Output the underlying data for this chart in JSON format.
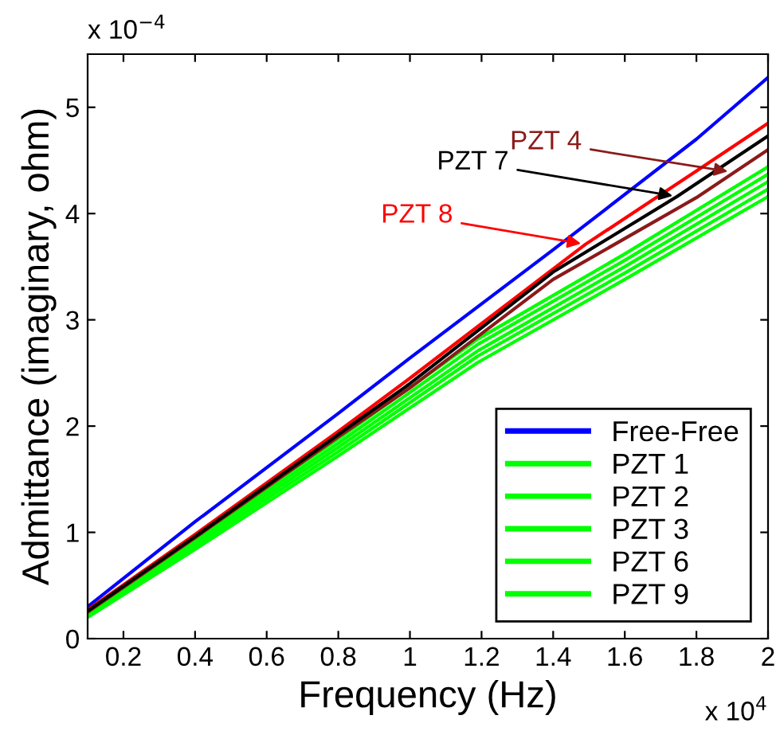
{
  "chart_data": {
    "type": "line",
    "xlabel": "Frequency (Hz)",
    "ylabel": "Admittance (imaginary, ohm)",
    "xlim": [
      0.1,
      2
    ],
    "xticks": [
      0.2,
      0.4,
      0.6,
      0.8,
      1,
      1.2,
      1.4,
      1.6,
      1.8,
      2
    ],
    "ylim": [
      0,
      5.5
    ],
    "yticks": [
      0,
      1,
      2,
      3,
      4,
      5
    ],
    "legend": "bottom right",
    "grid": false,
    "line_style": "solid",
    "series": [
      {
        "name": "Free-Free",
        "color": "#0000ff",
        "x": [
          0.1,
          0.4,
          0.8,
          1.0,
          1.4,
          1.8,
          2.0
        ],
        "values": [
          0.3,
          1.1,
          2.12,
          2.64,
          3.66,
          4.7,
          5.28
        ]
      },
      {
        "name": "PZT 1",
        "color": "#00ff00",
        "x": [
          0.1,
          0.4,
          0.8,
          1.19,
          1.6,
          2.0
        ],
        "values": [
          0.22,
          0.9,
          1.8,
          2.71,
          3.5,
          4.3
        ]
      },
      {
        "name": "PZT 2",
        "color": "#00ff00",
        "x": [
          0.1,
          0.4,
          0.8,
          1.19,
          1.6,
          2.0
        ],
        "values": [
          0.2,
          0.84,
          1.72,
          2.6,
          3.38,
          4.16
        ]
      },
      {
        "name": "PZT 3",
        "color": "#00ff00",
        "x": [
          0.1,
          0.4,
          0.8,
          1.19,
          1.6,
          2.0
        ],
        "values": [
          0.24,
          0.96,
          1.88,
          2.82,
          3.62,
          4.44
        ]
      },
      {
        "name": "PZT 6",
        "color": "#00ff00",
        "x": [
          0.1,
          0.4,
          0.8,
          1.19,
          1.6,
          2.0
        ],
        "values": [
          0.21,
          0.87,
          1.76,
          2.66,
          3.44,
          4.23
        ]
      },
      {
        "name": "PZT 9",
        "color": "#00ff00",
        "x": [
          0.1,
          0.4,
          0.8,
          1.19,
          1.6,
          2.0
        ],
        "values": [
          0.23,
          0.93,
          1.84,
          2.77,
          3.56,
          4.37
        ]
      },
      {
        "color": "#8b1a1a",
        "x": [
          0.1,
          0.4,
          0.8,
          1.0,
          1.4,
          1.8,
          2.0
        ],
        "values": [
          0.25,
          0.95,
          1.9,
          2.36,
          3.38,
          4.15,
          4.6
        ]
      },
      {
        "color": "#ff0000",
        "x": [
          0.1,
          0.4,
          0.8,
          1.0,
          1.49,
          1.8,
          2.0
        ],
        "values": [
          0.27,
          0.98,
          1.95,
          2.45,
          3.71,
          4.4,
          4.85
        ]
      },
      {
        "color": "#000000",
        "x": [
          0.1,
          0.4,
          0.8,
          1.0,
          1.4,
          1.746,
          2.0
        ],
        "values": [
          0.26,
          0.96,
          1.92,
          2.4,
          3.45,
          4.16,
          4.73
        ]
      }
    ],
    "annotations": [
      {
        "text": "PZT 4",
        "x": 1.9,
        "y": 4.39
      },
      {
        "text": "PZT 7",
        "x": 1.746,
        "y": 4.16
      },
      {
        "text": "PZT 8",
        "x": 1.49,
        "y": 3.71
      },
      "x 10$^{−4}$",
      "x 10$^{4}$"
    ]
  }
}
